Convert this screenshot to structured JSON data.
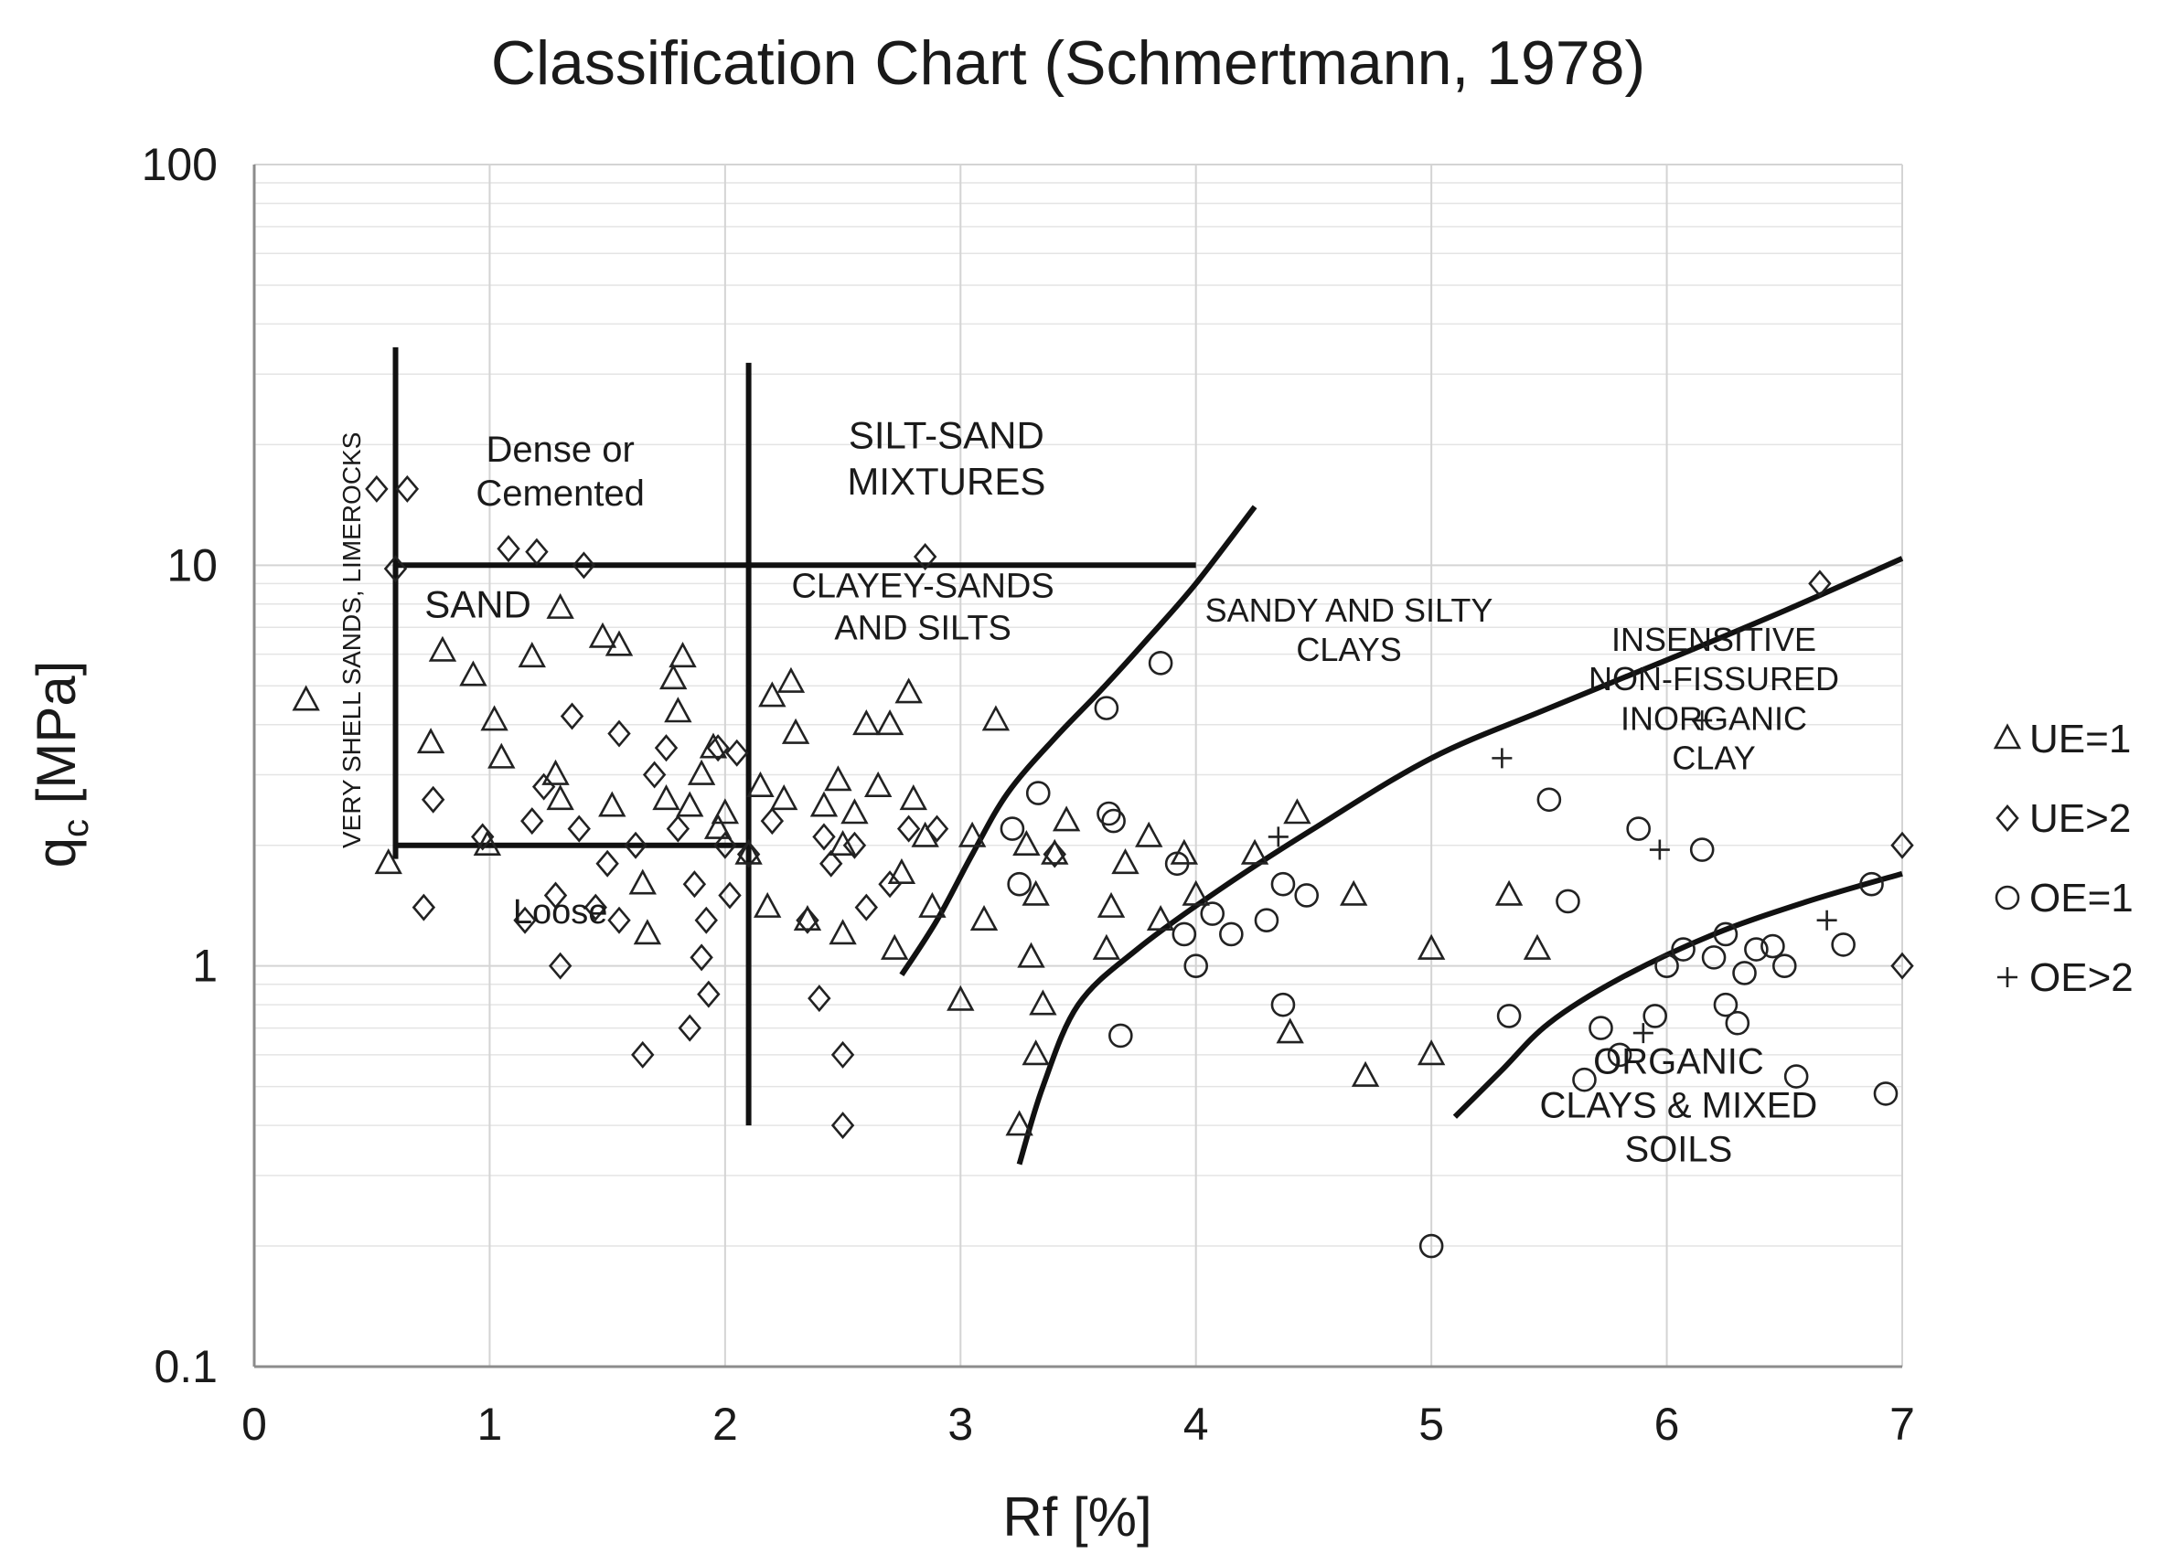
{
  "chart_data": {
    "type": "scatter",
    "title": "Classification Chart (Schmertmann, 1978)",
    "xlabel": "Rf [%]",
    "ylabel": "q",
    "ylabel_sub": "c",
    "ylabel_unit": " [MPa]",
    "xlim": [
      0,
      7
    ],
    "ylim": [
      0.1,
      100
    ],
    "yscale": "log",
    "x_ticks": [
      {
        "value": 0,
        "label": "0"
      },
      {
        "value": 1,
        "label": "1"
      },
      {
        "value": 2,
        "label": "2"
      },
      {
        "value": 3,
        "label": "3"
      },
      {
        "value": 4,
        "label": "4"
      },
      {
        "value": 5,
        "label": "5"
      },
      {
        "value": 6,
        "label": "6"
      },
      {
        "value": 7,
        "label": "7"
      }
    ],
    "y_ticks": [
      {
        "value": 0.1,
        "label": "0.1"
      },
      {
        "value": 1,
        "label": "1"
      },
      {
        "value": 10,
        "label": "10"
      },
      {
        "value": 100,
        "label": "100"
      }
    ],
    "grid": true,
    "legend_position": "right",
    "series": [
      {
        "name": "UE=1",
        "marker": "triangle",
        "points": [
          [
            0.22,
            4.6
          ],
          [
            0.57,
            1.8
          ],
          [
            0.75,
            3.6
          ],
          [
            0.8,
            6.1
          ],
          [
            0.93,
            5.3
          ],
          [
            0.99,
            2.0
          ],
          [
            1.02,
            4.1
          ],
          [
            1.05,
            3.3
          ],
          [
            1.18,
            5.9
          ],
          [
            1.28,
            3.0
          ],
          [
            1.3,
            2.6
          ],
          [
            1.3,
            7.8
          ],
          [
            1.48,
            6.6
          ],
          [
            1.52,
            2.5
          ],
          [
            1.55,
            6.3
          ],
          [
            1.65,
            1.6
          ],
          [
            1.67,
            1.2
          ],
          [
            1.75,
            2.6
          ],
          [
            1.78,
            5.2
          ],
          [
            1.8,
            4.3
          ],
          [
            1.82,
            5.9
          ],
          [
            1.85,
            2.5
          ],
          [
            1.9,
            3.0
          ],
          [
            1.95,
            3.5
          ],
          [
            1.97,
            2.2
          ],
          [
            2.0,
            2.4
          ],
          [
            2.1,
            1.9
          ],
          [
            2.15,
            2.8
          ],
          [
            2.18,
            1.4
          ],
          [
            2.2,
            4.7
          ],
          [
            2.25,
            2.6
          ],
          [
            2.28,
            5.1
          ],
          [
            2.3,
            3.8
          ],
          [
            2.35,
            1.3
          ],
          [
            2.42,
            2.5
          ],
          [
            2.48,
            2.9
          ],
          [
            2.5,
            1.2
          ],
          [
            2.5,
            2.0
          ],
          [
            2.55,
            2.4
          ],
          [
            2.6,
            4.0
          ],
          [
            2.65,
            2.8
          ],
          [
            2.7,
            4.0
          ],
          [
            2.72,
            1.1
          ],
          [
            2.75,
            1.7
          ],
          [
            2.78,
            4.8
          ],
          [
            2.8,
            2.6
          ],
          [
            2.85,
            2.1
          ],
          [
            2.88,
            1.4
          ],
          [
            3.0,
            0.82
          ],
          [
            3.05,
            2.1
          ],
          [
            3.1,
            1.3
          ],
          [
            3.15,
            4.1
          ],
          [
            3.25,
            0.4
          ],
          [
            3.28,
            2.0
          ],
          [
            3.3,
            1.05
          ],
          [
            3.32,
            0.6
          ],
          [
            3.32,
            1.5
          ],
          [
            3.35,
            0.8
          ],
          [
            3.4,
            1.9
          ],
          [
            3.45,
            2.3
          ],
          [
            3.62,
            1.1
          ],
          [
            3.64,
            1.4
          ],
          [
            3.7,
            1.8
          ],
          [
            3.8,
            2.1
          ],
          [
            3.85,
            1.3
          ],
          [
            3.95,
            1.9
          ],
          [
            4.0,
            1.5
          ],
          [
            4.25,
            1.9
          ],
          [
            4.4,
            0.68
          ],
          [
            4.43,
            2.4
          ],
          [
            4.67,
            1.5
          ],
          [
            4.72,
            0.53
          ],
          [
            5.0,
            1.1
          ],
          [
            5.0,
            0.6
          ],
          [
            5.33,
            1.5
          ],
          [
            5.45,
            1.1
          ]
        ]
      },
      {
        "name": "UE>2",
        "marker": "diamond",
        "points": [
          [
            0.52,
            15.5
          ],
          [
            0.6,
            9.8
          ],
          [
            0.65,
            15.5
          ],
          [
            0.72,
            1.4
          ],
          [
            0.76,
            2.6
          ],
          [
            0.97,
            2.1
          ],
          [
            1.08,
            11.0
          ],
          [
            1.15,
            1.3
          ],
          [
            1.18,
            2.3
          ],
          [
            1.2,
            10.8
          ],
          [
            1.23,
            2.8
          ],
          [
            1.28,
            1.5
          ],
          [
            1.3,
            1.0
          ],
          [
            1.35,
            4.2
          ],
          [
            1.38,
            2.2
          ],
          [
            1.4,
            10.0
          ],
          [
            1.45,
            1.4
          ],
          [
            1.5,
            1.8
          ],
          [
            1.55,
            1.3
          ],
          [
            1.55,
            3.8
          ],
          [
            1.62,
            2.0
          ],
          [
            1.65,
            0.6
          ],
          [
            1.7,
            3.0
          ],
          [
            1.75,
            3.5
          ],
          [
            1.8,
            2.2
          ],
          [
            1.85,
            0.7
          ],
          [
            1.87,
            1.6
          ],
          [
            1.9,
            1.05
          ],
          [
            1.92,
            1.3
          ],
          [
            1.93,
            0.85
          ],
          [
            1.97,
            3.5
          ],
          [
            2.0,
            2.0
          ],
          [
            2.02,
            1.5
          ],
          [
            2.05,
            3.4
          ],
          [
            2.1,
            1.9
          ],
          [
            2.2,
            2.3
          ],
          [
            2.35,
            1.3
          ],
          [
            2.4,
            0.83
          ],
          [
            2.42,
            2.1
          ],
          [
            2.45,
            1.8
          ],
          [
            2.5,
            0.6
          ],
          [
            2.5,
            0.4
          ],
          [
            2.55,
            2.0
          ],
          [
            2.6,
            1.4
          ],
          [
            2.7,
            1.6
          ],
          [
            2.78,
            2.2
          ],
          [
            2.85,
            10.5
          ],
          [
            2.9,
            2.2
          ],
          [
            3.4,
            1.9
          ],
          [
            6.65,
            9.0
          ],
          [
            7.0,
            2.0
          ],
          [
            7.0,
            1.0
          ]
        ]
      },
      {
        "name": "OE=1",
        "marker": "circle",
        "points": [
          [
            3.22,
            2.2
          ],
          [
            3.25,
            1.6
          ],
          [
            3.33,
            2.7
          ],
          [
            3.62,
            4.4
          ],
          [
            3.63,
            2.4
          ],
          [
            3.65,
            2.3
          ],
          [
            3.68,
            0.67
          ],
          [
            3.85,
            5.7
          ],
          [
            3.92,
            1.8
          ],
          [
            3.95,
            1.2
          ],
          [
            4.0,
            1.0
          ],
          [
            4.07,
            1.35
          ],
          [
            4.15,
            1.2
          ],
          [
            4.3,
            1.3
          ],
          [
            4.37,
            1.6
          ],
          [
            4.37,
            0.8
          ],
          [
            4.47,
            1.5
          ],
          [
            5.0,
            0.2
          ],
          [
            5.33,
            0.75
          ],
          [
            5.5,
            2.6
          ],
          [
            5.58,
            1.45
          ],
          [
            5.65,
            0.52
          ],
          [
            5.72,
            0.7
          ],
          [
            5.8,
            0.6
          ],
          [
            5.88,
            2.2
          ],
          [
            5.95,
            0.75
          ],
          [
            6.0,
            1.0
          ],
          [
            6.07,
            1.1
          ],
          [
            6.15,
            1.95
          ],
          [
            6.2,
            1.05
          ],
          [
            6.25,
            1.2
          ],
          [
            6.25,
            0.8
          ],
          [
            6.3,
            0.72
          ],
          [
            6.33,
            0.96
          ],
          [
            6.38,
            1.1
          ],
          [
            6.45,
            1.12
          ],
          [
            6.5,
            1.0
          ],
          [
            6.55,
            0.53
          ],
          [
            6.75,
            1.13
          ],
          [
            6.87,
            1.6
          ],
          [
            6.93,
            0.48
          ]
        ]
      },
      {
        "name": "OE>2",
        "marker": "plus",
        "points": [
          [
            4.35,
            2.1
          ],
          [
            5.3,
            3.3
          ],
          [
            5.9,
            0.68
          ],
          [
            5.97,
            1.95
          ],
          [
            6.15,
            4.1
          ],
          [
            6.68,
            1.3
          ]
        ]
      }
    ],
    "boundaries": [
      {
        "name": "very-shell-sands-limit",
        "points": [
          [
            0.6,
            35
          ],
          [
            0.6,
            1.85
          ]
        ]
      },
      {
        "name": "sand-silt-divide",
        "points": [
          [
            2.1,
            32
          ],
          [
            2.1,
            0.4
          ]
        ]
      },
      {
        "name": "dense-cemented-line",
        "points": [
          [
            0.6,
            10
          ],
          [
            4.0,
            10
          ]
        ]
      },
      {
        "name": "loose-line",
        "points": [
          [
            0.6,
            2.0
          ],
          [
            2.1,
            2.0
          ]
        ]
      },
      {
        "name": "silt-sand-clay-curve",
        "points": [
          [
            2.75,
            0.95
          ],
          [
            2.9,
            1.3
          ],
          [
            3.05,
            1.9
          ],
          [
            3.2,
            2.7
          ],
          [
            3.4,
            3.7
          ],
          [
            3.6,
            4.9
          ],
          [
            3.8,
            6.6
          ],
          [
            4.0,
            9.0
          ],
          [
            4.25,
            14
          ]
        ]
      },
      {
        "name": "silty-clay-curve",
        "points": [
          [
            3.25,
            0.32
          ],
          [
            3.35,
            0.5
          ],
          [
            3.5,
            0.8
          ],
          [
            3.75,
            1.1
          ],
          [
            4.1,
            1.55
          ],
          [
            4.5,
            2.2
          ],
          [
            5.0,
            3.3
          ],
          [
            5.5,
            4.4
          ],
          [
            6.0,
            5.8
          ],
          [
            6.5,
            7.7
          ],
          [
            7.0,
            10.4
          ]
        ]
      },
      {
        "name": "organic-clay-curve",
        "points": [
          [
            5.1,
            0.42
          ],
          [
            5.3,
            0.55
          ],
          [
            5.5,
            0.72
          ],
          [
            5.8,
            0.93
          ],
          [
            6.2,
            1.2
          ],
          [
            6.6,
            1.45
          ],
          [
            7.0,
            1.7
          ]
        ]
      }
    ],
    "region_labels": [
      {
        "lines": [
          "Dense or",
          "Cemented"
        ],
        "x": 1.3,
        "y": 17.2,
        "size": 40
      },
      {
        "lines": [
          "SILT-SAND",
          "MIXTURES"
        ],
        "x": 2.94,
        "y": 18.5,
        "size": 42
      },
      {
        "lines": [
          "SAND"
        ],
        "x": 0.95,
        "y": 8.0,
        "size": 42
      },
      {
        "lines": [
          "CLAYEY-SANDS",
          "AND SILTS"
        ],
        "x": 2.84,
        "y": 7.9,
        "size": 38
      },
      {
        "lines": [
          "SANDY AND SILTY",
          "CLAYS"
        ],
        "x": 4.65,
        "y": 6.9,
        "size": 36
      },
      {
        "lines": [
          "INSENSITIVE",
          "NON-FISSURED",
          "INORGANIC",
          "CLAY"
        ],
        "x": 6.2,
        "y": 4.65,
        "size": 36
      },
      {
        "lines": [
          "Loose"
        ],
        "x": 1.3,
        "y": 1.37,
        "size": 38
      },
      {
        "lines": [
          "ORGANIC",
          "CLAYS & MIXED",
          "SOILS"
        ],
        "x": 6.05,
        "y": 0.45,
        "size": 40
      }
    ],
    "rotated_label": {
      "text": "VERY SHELL SANDS, LIMEROCKS",
      "x": 0.45,
      "y": 6.5,
      "size": 28
    }
  }
}
